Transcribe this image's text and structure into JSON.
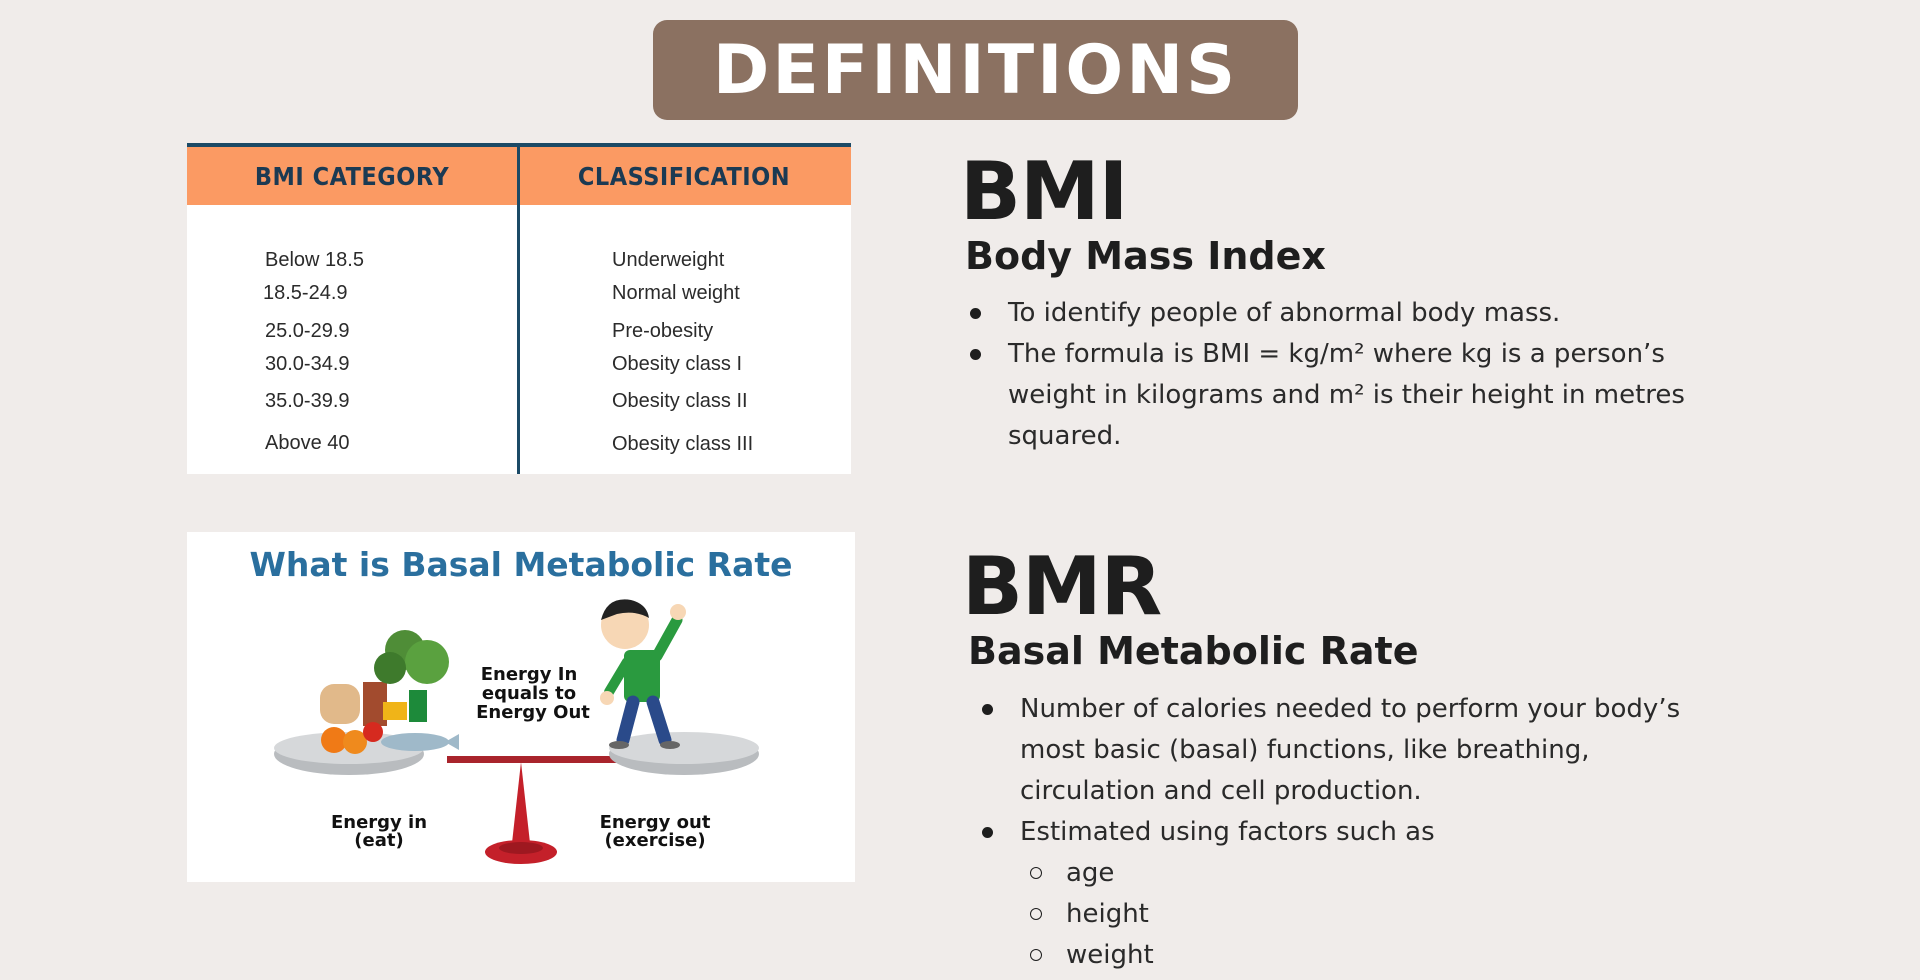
{
  "header": {
    "title": "DEFINITIONS"
  },
  "bmi_table": {
    "headers": [
      "BMI CATEGORY",
      "CLASSIFICATION"
    ],
    "rows": [
      [
        "Below 18.5",
        "Underweight"
      ],
      [
        "18.5-24.9",
        "Normal weight"
      ],
      [
        "25.0-29.9",
        "Pre-obesity"
      ],
      [
        "30.0-34.9",
        "Obesity class I"
      ],
      [
        "35.0-39.9",
        "Obesity class II"
      ],
      [
        "Above 40",
        "Obesity class III"
      ]
    ]
  },
  "bmr_image": {
    "title": "What is Basal Metabolic Rate",
    "center_label": [
      "Energy In",
      "equals to",
      "Energy Out"
    ],
    "left_label": [
      "Energy in",
      "(eat)"
    ],
    "right_label": [
      "Energy out",
      "(exercise)"
    ]
  },
  "bmi": {
    "abbr": "BMI",
    "full": "Body Mass Index",
    "bullet1": "To identify people of abnormal body mass.",
    "bullet2_line1": "The formula is BMI = kg/m² where kg is a person’s",
    "bullet2_line2": "weight in kilograms and m² is their height in metres",
    "bullet2_line3": "squared."
  },
  "bmr": {
    "abbr": "BMR",
    "full": "Basal Metabolic Rate",
    "bullet1_line1": "Number of calories needed to perform your body’s",
    "bullet1_line2": "most basic (basal) functions, like breathing,",
    "bullet1_line3": "circulation and cell production.",
    "bullet2": "Estimated using factors such as",
    "factors": [
      "age",
      "height",
      "weight"
    ]
  },
  "colors": {
    "background": "#f0ecea",
    "banner": "#8b7161",
    "table_header": "#fb9a63",
    "table_rule": "#1b4a66",
    "image_title": "#2a6f9e"
  }
}
